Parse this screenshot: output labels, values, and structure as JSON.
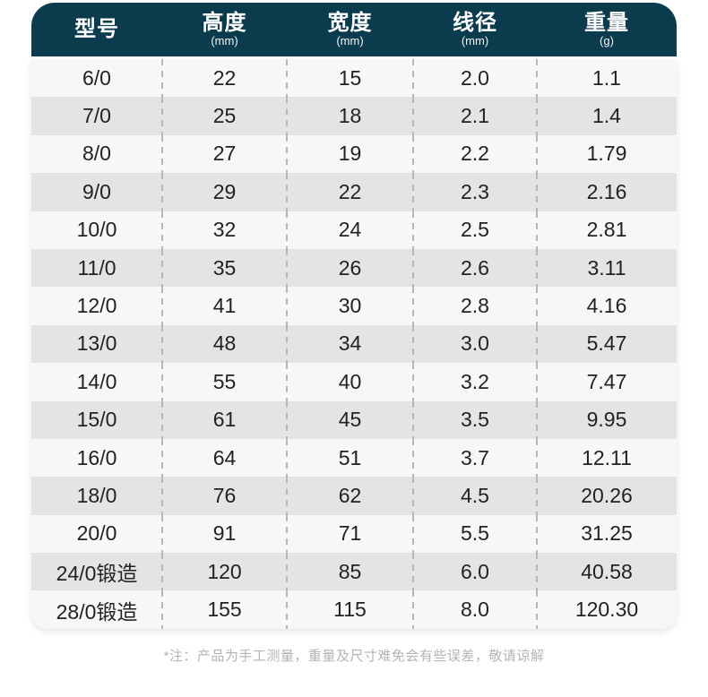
{
  "colors": {
    "header_bg": "#0b3c4d",
    "header_text": "#ffffff",
    "row_light": "#f7f7f7",
    "row_dark": "#e4e4e4",
    "cell_text": "#222222",
    "divider": "#b7b7b7",
    "footnote_text": "#b4b4b4",
    "page_bg": "#ffffff"
  },
  "table": {
    "columns": [
      {
        "key": "model",
        "label": "型号",
        "unit": ""
      },
      {
        "key": "height",
        "label": "高度",
        "unit": "(mm)"
      },
      {
        "key": "width",
        "label": "宽度",
        "unit": "(mm)"
      },
      {
        "key": "wire",
        "label": "线径",
        "unit": "(mm)"
      },
      {
        "key": "weight",
        "label": "重量",
        "unit": "(g)"
      }
    ],
    "rows": [
      {
        "model": "6/0",
        "height": "22",
        "width": "15",
        "wire": "2.0",
        "weight": "1.1"
      },
      {
        "model": "7/0",
        "height": "25",
        "width": "18",
        "wire": "2.1",
        "weight": "1.4"
      },
      {
        "model": "8/0",
        "height": "27",
        "width": "19",
        "wire": "2.2",
        "weight": "1.79"
      },
      {
        "model": "9/0",
        "height": "29",
        "width": "22",
        "wire": "2.3",
        "weight": "2.16"
      },
      {
        "model": "10/0",
        "height": "32",
        "width": "24",
        "wire": "2.5",
        "weight": "2.81"
      },
      {
        "model": "11/0",
        "height": "35",
        "width": "26",
        "wire": "2.6",
        "weight": "3.11"
      },
      {
        "model": "12/0",
        "height": "41",
        "width": "30",
        "wire": "2.8",
        "weight": "4.16"
      },
      {
        "model": "13/0",
        "height": "48",
        "width": "34",
        "wire": "3.0",
        "weight": "5.47"
      },
      {
        "model": "14/0",
        "height": "55",
        "width": "40",
        "wire": "3.2",
        "weight": "7.47"
      },
      {
        "model": "15/0",
        "height": "61",
        "width": "45",
        "wire": "3.5",
        "weight": "9.95"
      },
      {
        "model": "16/0",
        "height": "64",
        "width": "51",
        "wire": "3.7",
        "weight": "12.11"
      },
      {
        "model": "18/0",
        "height": "76",
        "width": "62",
        "wire": "4.5",
        "weight": "20.26"
      },
      {
        "model": "20/0",
        "height": "91",
        "width": "71",
        "wire": "5.5",
        "weight": "31.25"
      },
      {
        "model": "24/0锻造",
        "height": "120",
        "width": "85",
        "wire": "6.0",
        "weight": "40.58"
      },
      {
        "model": "28/0锻造",
        "height": "155",
        "width": "115",
        "wire": "8.0",
        "weight": "120.30"
      }
    ]
  },
  "footnote": "*注：产品为手工测量，重量及尺寸难免会有些误差，敬请谅解"
}
